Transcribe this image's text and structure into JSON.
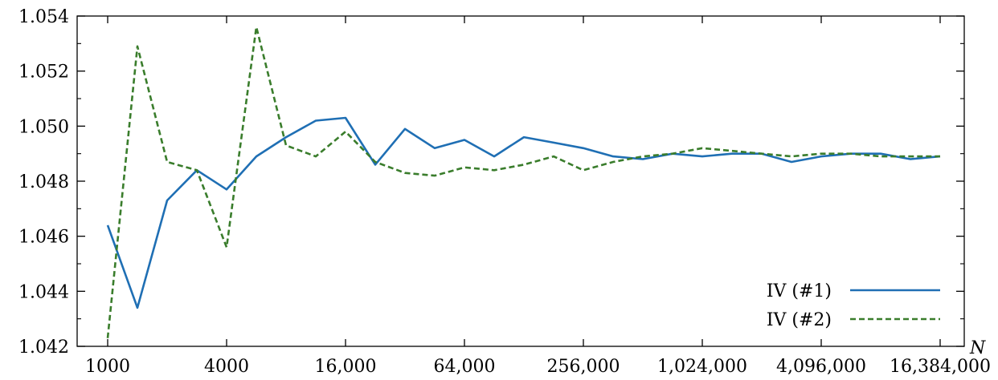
{
  "chart_data": {
    "type": "line",
    "xlabel": "N",
    "ylabel": "",
    "x_scale": "log2",
    "xlim": [
      1000,
      16384000
    ],
    "ylim": [
      1.042,
      1.054
    ],
    "grid": false,
    "legend_position": "bottom-right",
    "x_ticks": [
      1000,
      4000,
      16000,
      64000,
      256000,
      1024000,
      4096000,
      16384000
    ],
    "x_tick_labels": [
      "1000",
      "4000",
      "16,000",
      "64,000",
      "256,000",
      "1,024,000",
      "4,096,000",
      "16,384,000"
    ],
    "y_ticks": [
      1.042,
      1.044,
      1.046,
      1.048,
      1.05,
      1.052,
      1.054
    ],
    "y_tick_labels": [
      "1.042",
      "1.044",
      "1.046",
      "1.048",
      "1.050",
      "1.052",
      "1.054"
    ],
    "x": [
      1000,
      1414,
      2000,
      2828,
      4000,
      5657,
      8000,
      11314,
      16000,
      22627,
      32000,
      45255,
      64000,
      90510,
      128000,
      181019,
      256000,
      362039,
      512000,
      724077,
      1024000,
      1448155,
      2048000,
      2896309,
      4096000,
      5792619,
      8192000,
      11585237,
      16384000
    ],
    "series": [
      {
        "name": "IV (#1)",
        "color": "#1f6fb4",
        "style": "solid",
        "values": [
          1.0464,
          1.0434,
          1.0473,
          1.0484,
          1.0477,
          1.0489,
          1.0496,
          1.0502,
          1.0503,
          1.0486,
          1.0499,
          1.0492,
          1.0495,
          1.0489,
          1.0496,
          1.0494,
          1.0492,
          1.0489,
          1.0488,
          1.049,
          1.0489,
          1.049,
          1.049,
          1.0487,
          1.0489,
          1.049,
          1.049,
          1.0488,
          1.0489
        ]
      },
      {
        "name": "IV (#2)",
        "color": "#3a7d2c",
        "style": "dashed",
        "values": [
          1.0423,
          1.0529,
          1.0487,
          1.0484,
          1.0456,
          1.0536,
          1.0493,
          1.0489,
          1.0498,
          1.0487,
          1.0483,
          1.0482,
          1.0485,
          1.0484,
          1.0486,
          1.0489,
          1.0484,
          1.0487,
          1.0489,
          1.049,
          1.0492,
          1.0491,
          1.049,
          1.0489,
          1.049,
          1.049,
          1.0489,
          1.0489,
          1.0489
        ]
      }
    ]
  }
}
